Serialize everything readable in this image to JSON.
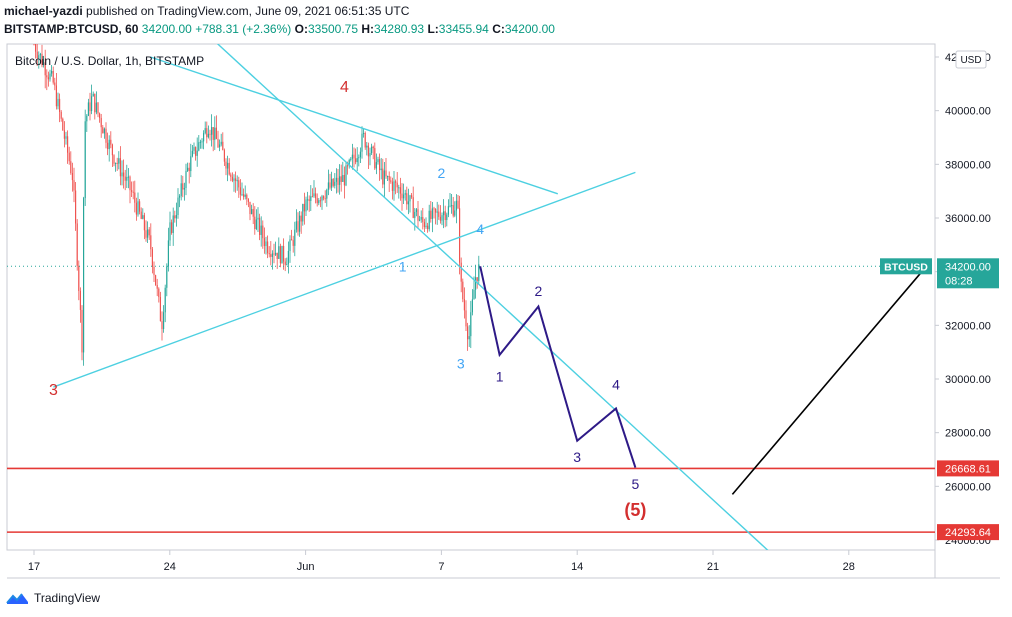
{
  "header": {
    "author": "michael-yazdi",
    "published_text": "published on TradingView.com, June 09, 2021 06:51:35 UTC",
    "symbol": "BITSTAMP:BTCUSD, 60",
    "last": "34200.00",
    "change": "+788.31 (+2.36%)",
    "o_label": "O:",
    "o": "33500.75",
    "h_label": "H:",
    "h": "34280.93",
    "l_label": "L:",
    "l": "33455.94",
    "c_label": "C:",
    "c": "34200.00"
  },
  "footer": {
    "brand": "TradingView"
  },
  "chart_data": {
    "type": "candlestick",
    "title": "Bitcoin / U.S. Dollar, 1h, BITSTAMP",
    "currency_badge": "USD",
    "x_ticks": [
      "17",
      "24",
      "Jun",
      "7",
      "14",
      "21",
      "28"
    ],
    "y_ticks": [
      "24000.00",
      "26000.00",
      "28000.00",
      "30000.00",
      "32000.00",
      "34000.00",
      "36000.00",
      "38000.00",
      "40000.00",
      "42000.00"
    ],
    "ylim": [
      23500,
      42500
    ],
    "colors": {
      "up": "#26a69a",
      "down": "#ef5350",
      "trend": "#4dd0e1",
      "wave": "#2e1a87",
      "support": "#e53935",
      "projection": "#000000"
    },
    "price_badge": {
      "symbol": "BTCUSD",
      "value": "34200.00",
      "countdown": "08:28",
      "price": 34200
    },
    "support_levels": [
      {
        "label": "26668.61",
        "price": 26668.61
      },
      {
        "label": "24293.64",
        "price": 24293.64
      }
    ],
    "price_path": [
      [
        "May 17",
        42500
      ],
      [
        "May 18",
        41000
      ],
      [
        "May 19",
        37500
      ],
      [
        "May 19 12h",
        31000
      ],
      [
        "May 19 14h",
        39500
      ],
      [
        "May 20",
        40500
      ],
      [
        "May 21",
        38500
      ],
      [
        "May 22",
        37000
      ],
      [
        "May 23",
        35000
      ],
      [
        "May 23 14h",
        32000
      ],
      [
        "May 24",
        35500
      ],
      [
        "May 25",
        38000
      ],
      [
        "May 26",
        39500
      ],
      [
        "May 27",
        38000
      ],
      [
        "May 28",
        36500
      ],
      [
        "May 29",
        35000
      ],
      [
        "May 30",
        34500
      ],
      [
        "May 31",
        36500
      ],
      [
        "Jun 1",
        37000
      ],
      [
        "Jun 2",
        37500
      ],
      [
        "Jun 3",
        39000
      ],
      [
        "Jun 4",
        37500
      ],
      [
        "Jun 5",
        37000
      ],
      [
        "Jun 6",
        35800
      ],
      [
        "Jun 7",
        36200
      ],
      [
        "Jun 7 20h",
        36500
      ],
      [
        "Jun 8",
        33500
      ],
      [
        "Jun 8 10h",
        31500
      ],
      [
        "Jun 8 18h",
        33800
      ],
      [
        "Jun 9",
        34200
      ]
    ],
    "trendlines": [
      {
        "from": [
          "May 18",
          29700
        ],
        "to": [
          "Jun 17",
          37700
        ]
      },
      {
        "from": [
          "May 23",
          42000
        ],
        "to": [
          "Jun 13",
          36900
        ]
      },
      {
        "from": [
          "May 26",
          42800
        ],
        "to": [
          "Jun 24",
          23500
        ]
      }
    ],
    "wave_path": [
      [
        "Jun 9",
        34200
      ],
      [
        "Jun 10",
        30900
      ],
      [
        "Jun 12",
        32700
      ],
      [
        "Jun 14",
        27700
      ],
      [
        "Jun 16",
        28900
      ],
      [
        "Jun 17",
        26700
      ]
    ],
    "projection_line": {
      "from": [
        "Jun 22",
        25700
      ],
      "to": [
        "Jul 2",
        34200
      ]
    },
    "wave_labels": [
      {
        "text": "4",
        "at": [
          "Jun 2",
          40700
        ],
        "color": "red"
      },
      {
        "text": "3",
        "at": [
          "May 18",
          29400
        ],
        "color": "red"
      },
      {
        "text": "2",
        "at": [
          "Jun 7",
          37500
        ],
        "color": "blue"
      },
      {
        "text": "1",
        "at": [
          "Jun 5",
          34000
        ],
        "color": "blue"
      },
      {
        "text": "4",
        "at": [
          "Jun 9",
          35400
        ],
        "color": "blue"
      },
      {
        "text": "3",
        "at": [
          "Jun 8",
          30400
        ],
        "color": "blue"
      },
      {
        "text": "1",
        "at": [
          "Jun 10",
          29900
        ],
        "color": "navy"
      },
      {
        "text": "2",
        "at": [
          "Jun 12",
          33100
        ],
        "color": "navy"
      },
      {
        "text": "3",
        "at": [
          "Jun 14",
          26900
        ],
        "color": "navy"
      },
      {
        "text": "4",
        "at": [
          "Jun 16",
          29600
        ],
        "color": "navy"
      },
      {
        "text": "5",
        "at": [
          "Jun 17",
          25900
        ],
        "color": "navy"
      },
      {
        "text": "(5)",
        "at": [
          "Jun 17",
          24900
        ],
        "color": "red"
      }
    ]
  }
}
